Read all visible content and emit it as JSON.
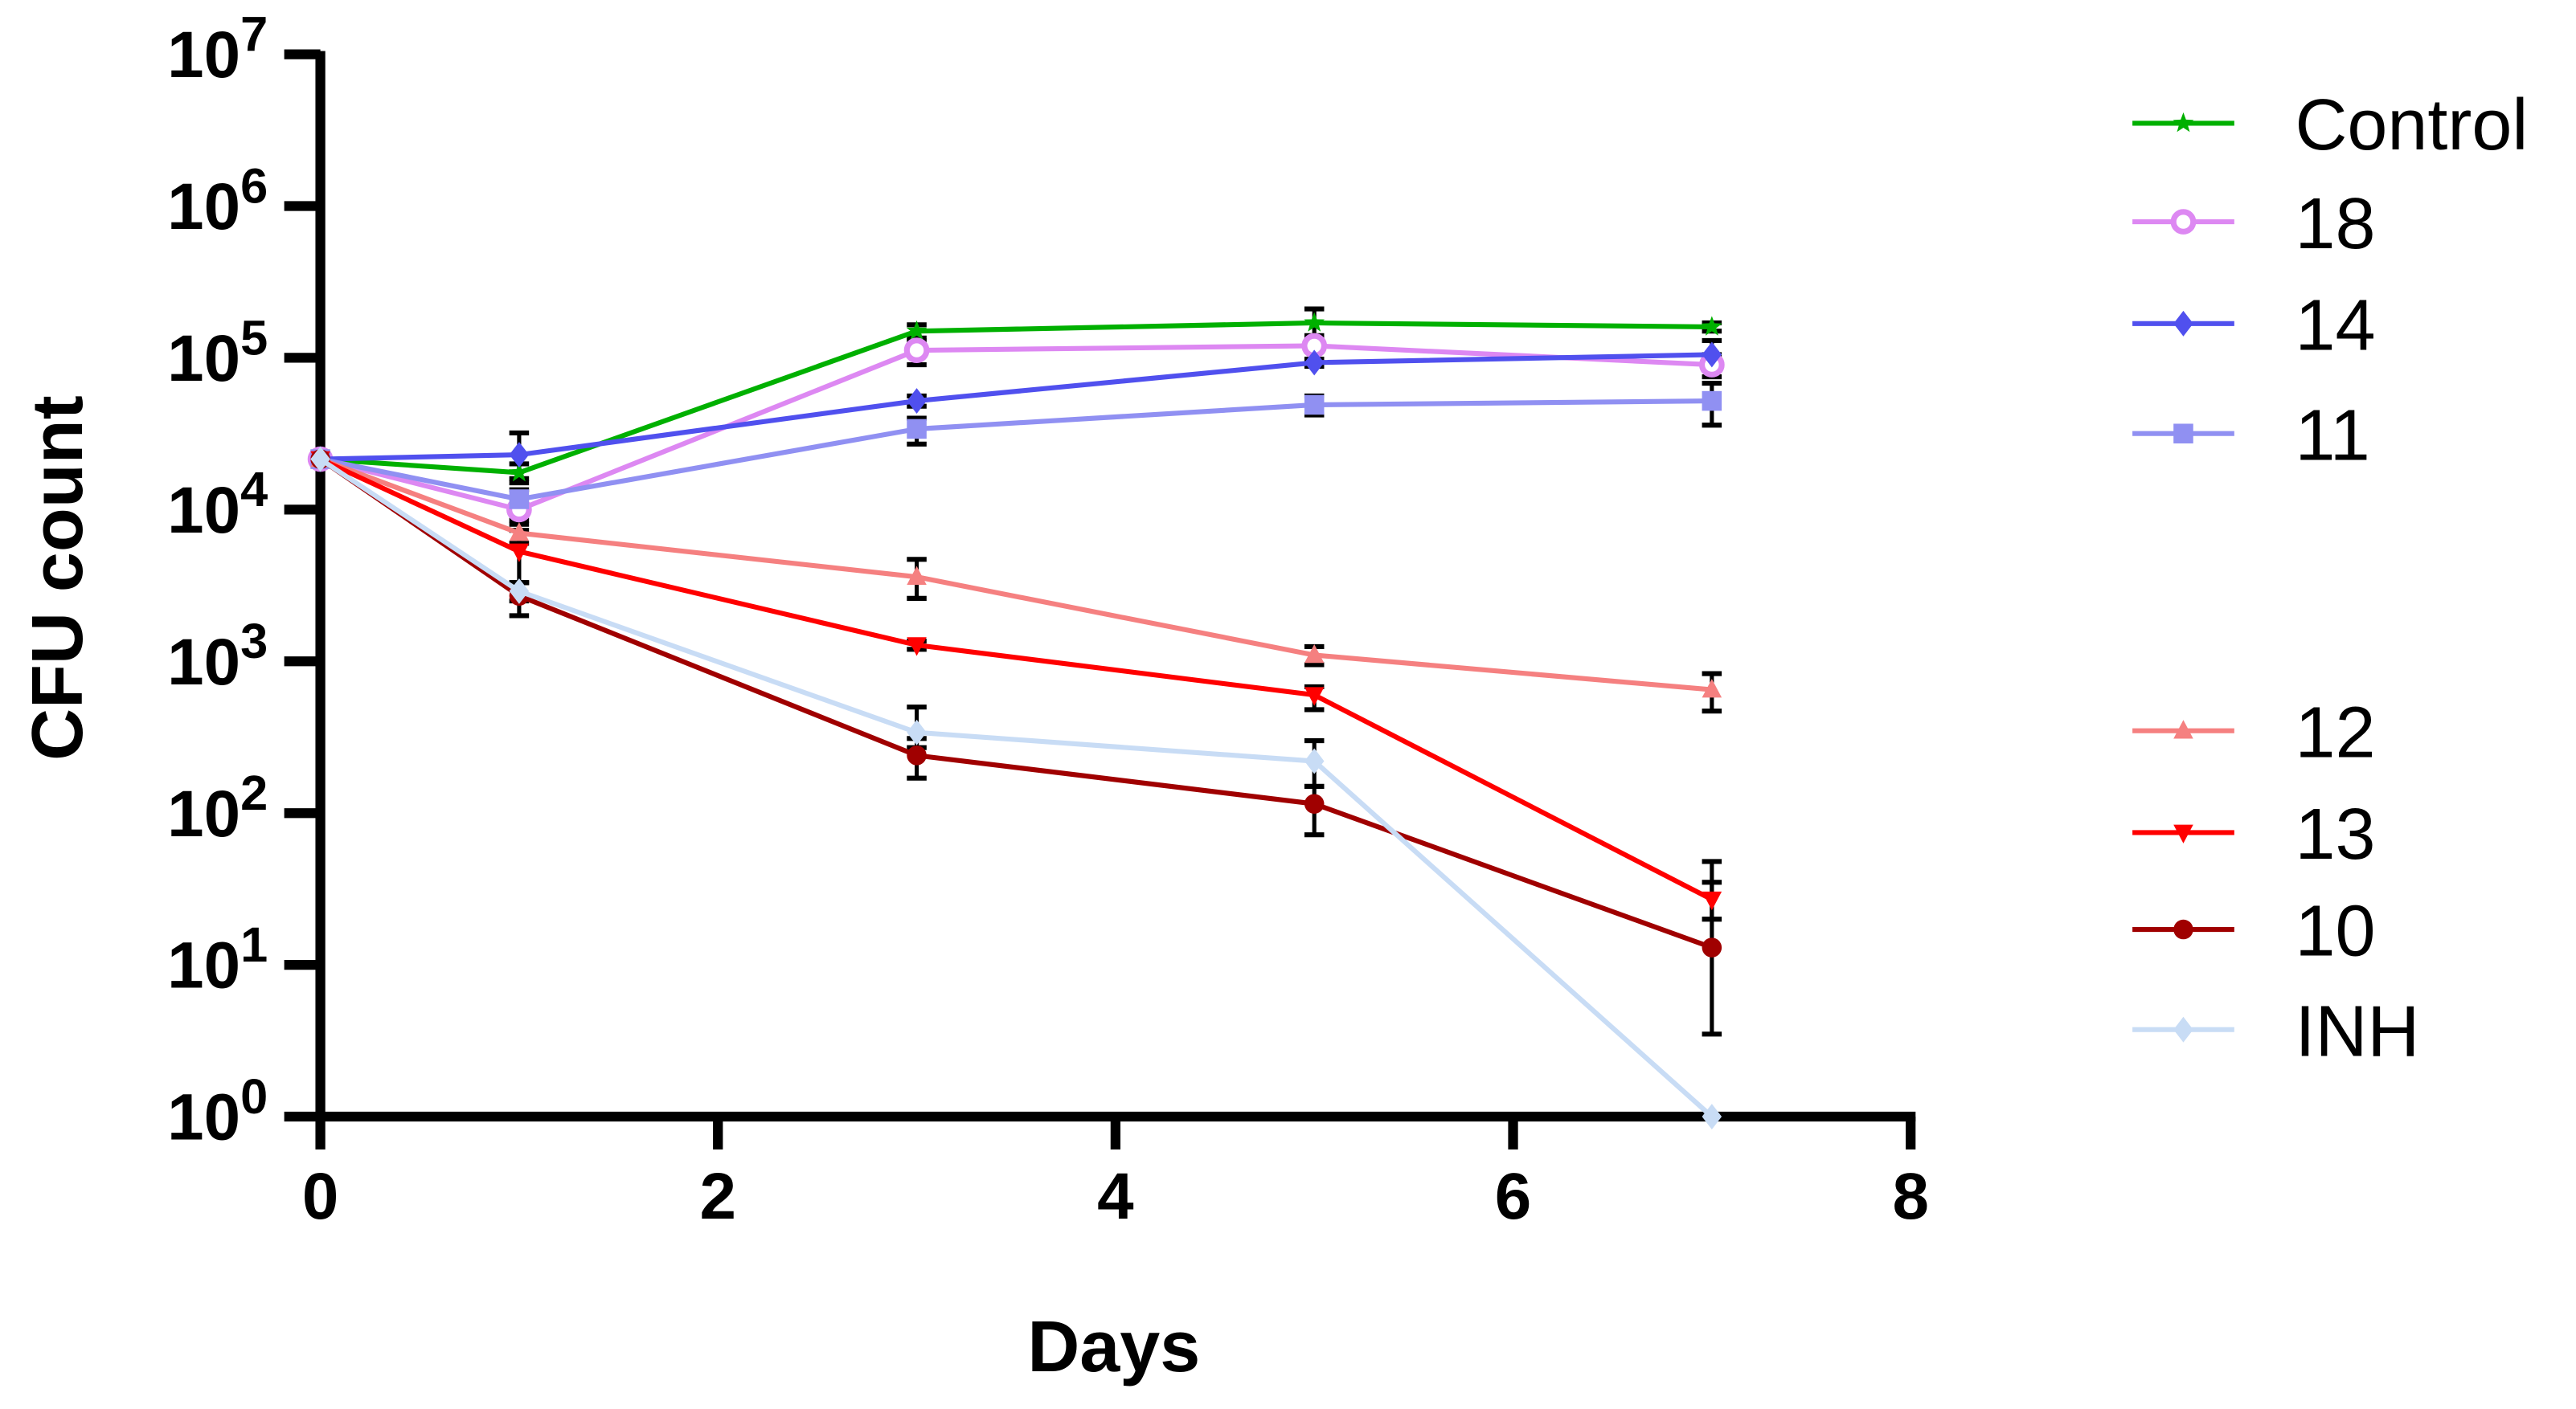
{
  "chart_data": {
    "type": "line",
    "title": "",
    "xlabel": "Days",
    "ylabel": "CFU count",
    "xlim": [
      0,
      8
    ],
    "ylim": [
      1,
      10000000
    ],
    "yscale": "log",
    "x_ticks": [
      "0",
      "2",
      "4",
      "6",
      "8"
    ],
    "y_ticks": [
      {
        "base": "10",
        "exp": "0"
      },
      {
        "base": "10",
        "exp": "1"
      },
      {
        "base": "10",
        "exp": "2"
      },
      {
        "base": "10",
        "exp": "3"
      },
      {
        "base": "10",
        "exp": "4"
      },
      {
        "base": "10",
        "exp": "5"
      },
      {
        "base": "10",
        "exp": "6"
      },
      {
        "base": "10",
        "exp": "7"
      }
    ],
    "legend_position": "right",
    "x": [
      0,
      1,
      3,
      5,
      7
    ],
    "series": [
      {
        "name": "Control",
        "color": "#00b000",
        "marker": "star",
        "values": [
          21500,
          17500,
          150000,
          170000,
          160000
        ],
        "err_low": [
          21500,
          15000,
          135000,
          140000,
          150000
        ],
        "err_high": [
          21500,
          20000,
          165000,
          210000,
          170000
        ]
      },
      {
        "name": "18",
        "color": "#dd88f2",
        "marker": "open-circle",
        "values": [
          21500,
          10000,
          112000,
          120000,
          90000
        ],
        "err_low": [
          21500,
          8500,
          90000,
          110000,
          75000
        ],
        "err_high": [
          21500,
          12000,
          130000,
          130000,
          105000
        ]
      },
      {
        "name": "14",
        "color": "#5050ee",
        "marker": "diamond",
        "values": [
          21500,
          23000,
          52000,
          93000,
          105000
        ],
        "err_low": [
          21500,
          16000,
          48000,
          88000,
          90000
        ],
        "err_high": [
          21500,
          32000,
          56000,
          98000,
          130000
        ]
      },
      {
        "name": "11",
        "color": "#9090f2",
        "marker": "square",
        "values": [
          21500,
          11700,
          34000,
          49000,
          52000
        ],
        "err_low": [
          21500,
          10000,
          27000,
          42000,
          36000
        ],
        "err_high": [
          21500,
          13500,
          40000,
          56000,
          68000
        ]
      },
      {
        "name": "12",
        "color": "#f58080",
        "marker": "triangle-up",
        "values": [
          21500,
          7000,
          3600,
          1100,
          650
        ],
        "err_low": [
          21500,
          6000,
          2600,
          950,
          470
        ],
        "err_high": [
          21500,
          8000,
          4700,
          1250,
          830
        ]
      },
      {
        "name": "13",
        "color": "#ff0000",
        "marker": "triangle-down",
        "values": [
          21500,
          5300,
          1280,
          600,
          27
        ],
        "err_low": [
          21500,
          3300,
          1200,
          480,
          20
        ],
        "err_high": [
          21500,
          7300,
          1360,
          680,
          48
        ]
      },
      {
        "name": "10",
        "color": "#a00000",
        "marker": "circle",
        "values": [
          21500,
          2700,
          240,
          115,
          13
        ],
        "err_low": [
          21500,
          2000,
          170,
          72,
          3.5
        ],
        "err_high": [
          21500,
          3300,
          310,
          150,
          35
        ]
      },
      {
        "name": "INH",
        "color": "#c8dcf5",
        "marker": "diamond",
        "values": [
          21500,
          2900,
          340,
          220,
          1
        ],
        "err_low": [
          21500,
          2500,
          270,
          150,
          1
        ],
        "err_high": [
          21500,
          3300,
          500,
          300,
          1
        ]
      }
    ]
  }
}
